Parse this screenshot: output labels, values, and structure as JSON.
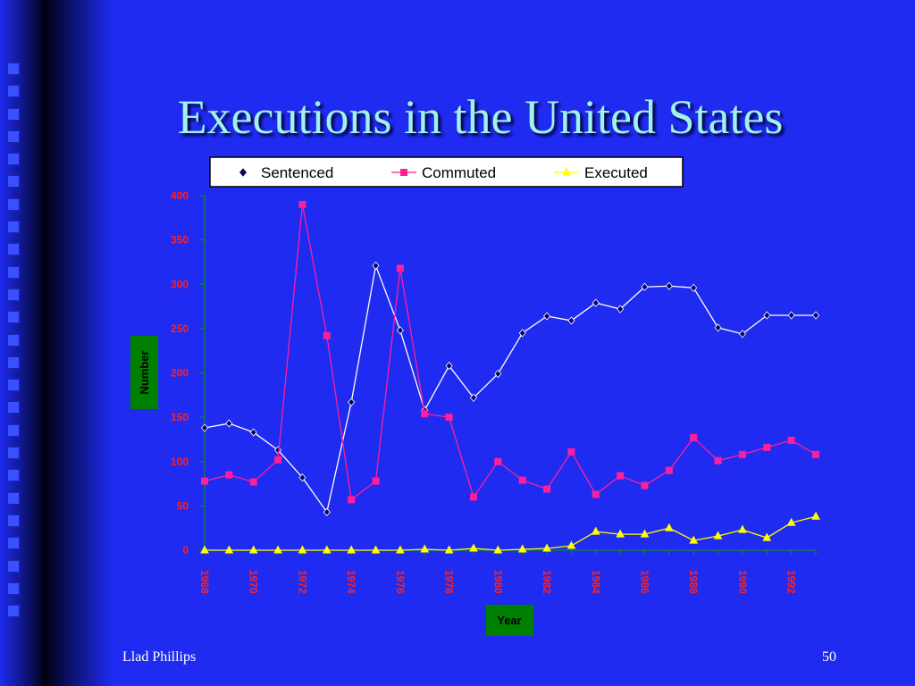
{
  "slide": {
    "title": "Executions in the United States",
    "footer_left": "Llad Phillips",
    "page_number": "50"
  },
  "colors": {
    "background": "#1f2bf0",
    "title": "#9ff2ee",
    "sentenced": "#ffffff",
    "sentenced_marker": "#000060",
    "commuted": "#ff1f9a",
    "executed": "#ffff00",
    "tick_labels": "#ff2020",
    "axis": "#00a000",
    "label_box": "#008000"
  },
  "chart_data": {
    "type": "line",
    "title": "",
    "xlabel": "Year",
    "ylabel": "Number",
    "ylim": [
      0,
      400
    ],
    "yticks": [
      0,
      50,
      100,
      150,
      200,
      250,
      300,
      350,
      400
    ],
    "x": [
      1968,
      1969,
      1970,
      1971,
      1972,
      1973,
      1974,
      1975,
      1976,
      1977,
      1978,
      1979,
      1980,
      1981,
      1982,
      1983,
      1984,
      1985,
      1986,
      1987,
      1988,
      1989,
      1990,
      1991,
      1992,
      1993
    ],
    "xtick_labels": [
      "1968",
      "1970",
      "1972",
      "1974",
      "1976",
      "1978",
      "1980",
      "1982",
      "1984",
      "1986",
      "1988",
      "1990",
      "1992"
    ],
    "legend_position": "top",
    "series": [
      {
        "name": "Sentenced",
        "marker": "diamond",
        "values": [
          138,
          143,
          133,
          113,
          82,
          43,
          167,
          321,
          248,
          158,
          208,
          172,
          199,
          245,
          264,
          259,
          279,
          272,
          297,
          298,
          296,
          251,
          244,
          265,
          265,
          265
        ]
      },
      {
        "name": "Commuted",
        "marker": "square",
        "values": [
          78,
          85,
          77,
          102,
          390,
          242,
          57,
          78,
          318,
          154,
          150,
          60,
          100,
          79,
          69,
          111,
          63,
          84,
          73,
          90,
          127,
          101,
          108,
          116,
          124,
          108
        ]
      },
      {
        "name": "Executed",
        "marker": "triangle",
        "values": [
          0,
          0,
          0,
          0,
          0,
          0,
          0,
          0,
          0,
          1,
          0,
          2,
          0,
          1,
          2,
          5,
          21,
          18,
          18,
          25,
          11,
          16,
          23,
          14,
          31,
          38
        ]
      }
    ]
  }
}
